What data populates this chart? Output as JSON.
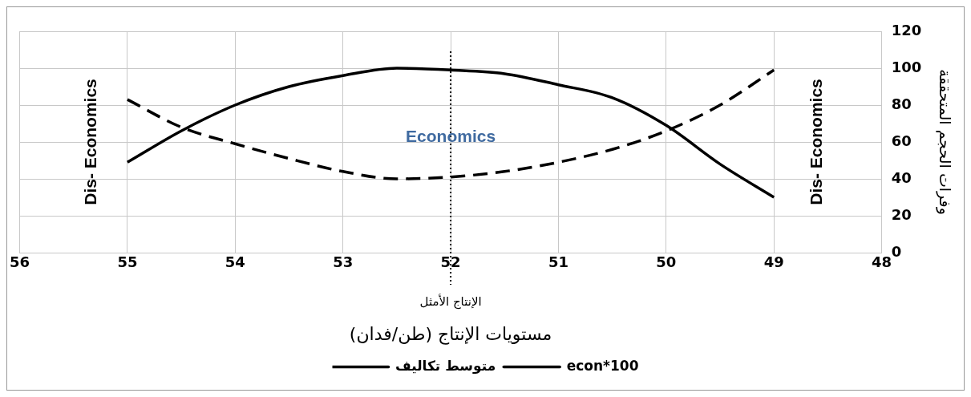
{
  "chart_data": {
    "type": "line",
    "xlabel": "مستويات الإنتاج (طن/فدان)",
    "ylabel": "وفرات الحجم المتحققة",
    "x": [
      55,
      54.5,
      54,
      53.5,
      53,
      52.5,
      52,
      51.5,
      51,
      50.5,
      50,
      49.5,
      49
    ],
    "series": [
      {
        "name": "متوسط تكاليف",
        "color": "#000000",
        "line_style": "dashed",
        "values": [
          83,
          68,
          59,
          51,
          44,
          40,
          41,
          44,
          49,
          56,
          66,
          80,
          99
        ]
      },
      {
        "name": "econ*100",
        "color": "#000000",
        "line_style": "solid",
        "values": [
          49,
          66,
          80,
          90,
          96,
          100,
          99,
          97,
          91,
          84,
          69,
          48,
          30
        ]
      }
    ],
    "xlim": [
      56,
      48
    ],
    "xticks": [
      56,
      55,
      54,
      53,
      52,
      51,
      50,
      49,
      48
    ],
    "ylim": [
      0,
      120
    ],
    "yticks": [
      0,
      20,
      40,
      60,
      80,
      100,
      120
    ],
    "grid": true,
    "legend": "bottom",
    "marker": "none",
    "ref_lines": [
      {
        "axis": "x",
        "value": 52,
        "label": "الإنتاج الأمثل",
        "line_style": "dotted",
        "color": "#000000"
      }
    ],
    "annotations": [
      "Dis- Economics",
      "Economics",
      "Dis- Economics"
    ]
  }
}
